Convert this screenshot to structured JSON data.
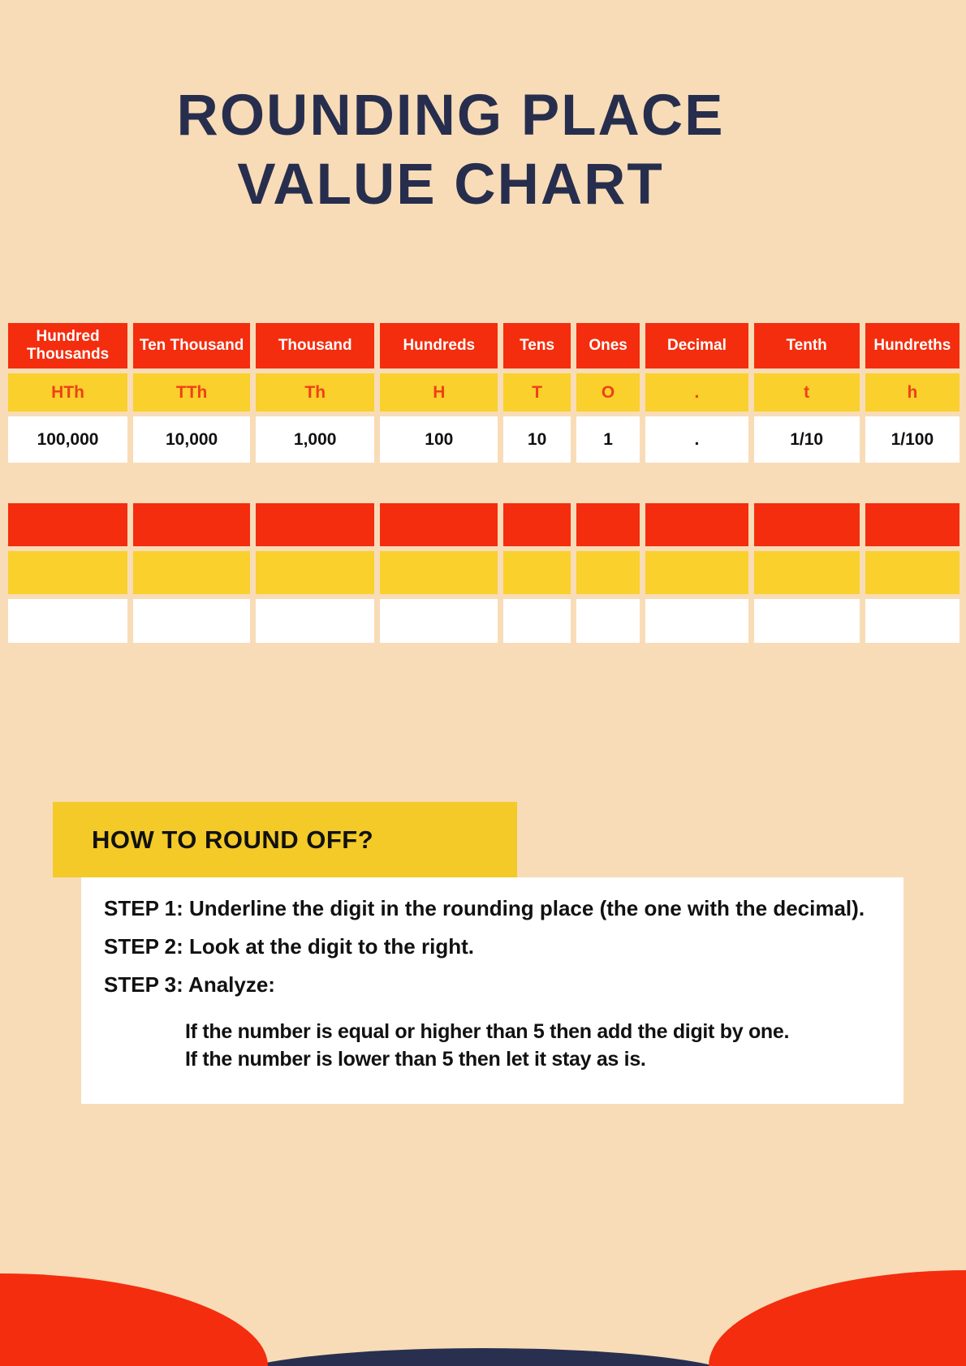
{
  "title": {
    "line1": "ROUNDING PLACE",
    "line2": "VALUE CHART"
  },
  "colors": {
    "background": "#f8dcb7",
    "red": "#f42d0e",
    "yellow": "#fad02c",
    "banner_yellow": "#f3ca28",
    "navy": "#272e4d",
    "abbr_red": "#ef4116",
    "white": "#ffffff"
  },
  "table": {
    "columns": [
      {
        "header": "Hundred Thousands",
        "abbr": "HTh",
        "value": "100,000"
      },
      {
        "header": "Ten Thousand",
        "abbr": "TTh",
        "value": "10,000"
      },
      {
        "header": "Thousand",
        "abbr": "Th",
        "value": "1,000"
      },
      {
        "header": "Hundreds",
        "abbr": "H",
        "value": "100"
      },
      {
        "header": "Tens",
        "abbr": "T",
        "value": "10"
      },
      {
        "header": "Ones",
        "abbr": "O",
        "value": "1"
      },
      {
        "header": "Decimal",
        "abbr": ".",
        "value": "."
      },
      {
        "header": "Tenth",
        "abbr": "t",
        "value": "1/10"
      },
      {
        "header": "Hundreths",
        "abbr": "h",
        "value": "1/100"
      }
    ],
    "empty_row_colors": [
      "red",
      "yellow",
      "white"
    ]
  },
  "how_to": {
    "heading": "HOW TO ROUND OFF?",
    "step1": "STEP 1: Underline the digit in the rounding place (the one with the decimal).",
    "step2": "STEP 2: Look at the digit to the right.",
    "step3": "STEP 3: Analyze:",
    "analysis1": "If the number is equal or higher than 5 then add the digit by one.",
    "analysis2": "If the number is lower than 5 then let it stay as is."
  }
}
